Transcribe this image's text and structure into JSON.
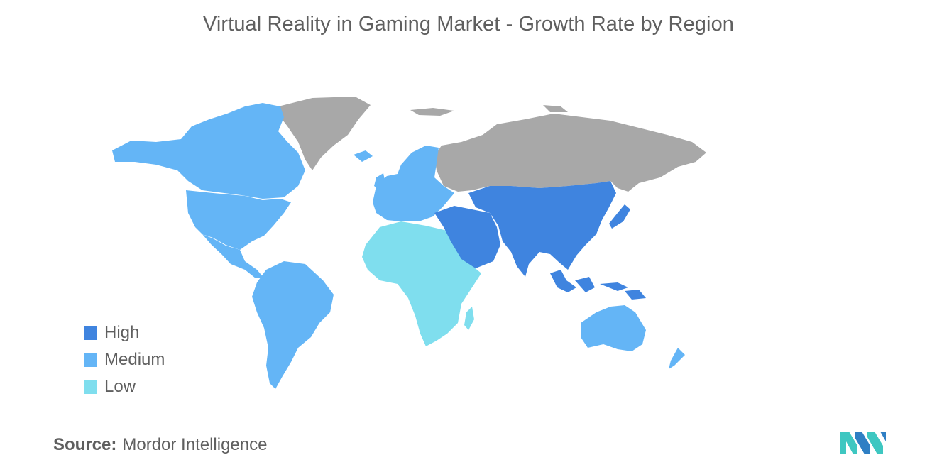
{
  "title": "Virtual Reality in Gaming Market - Growth Rate by Region",
  "legend": [
    {
      "label": "High",
      "color": "#3f84df"
    },
    {
      "label": "Medium",
      "color": "#64b5f6"
    },
    {
      "label": "Low",
      "color": "#7fdeee"
    }
  ],
  "no_data_color": "#a8a8a8",
  "regions": {
    "high": [
      "China",
      "India",
      "Japan",
      "South Korea",
      "Southeast Asia",
      "Middle East",
      "Central Asia"
    ],
    "medium": [
      "North America",
      "South America",
      "Europe",
      "Australia",
      "New Zealand"
    ],
    "low": [
      "Africa"
    ],
    "no_data": [
      "Greenland",
      "Russia"
    ]
  },
  "source": {
    "label": "Source:",
    "value": "Mordor Intelligence"
  }
}
